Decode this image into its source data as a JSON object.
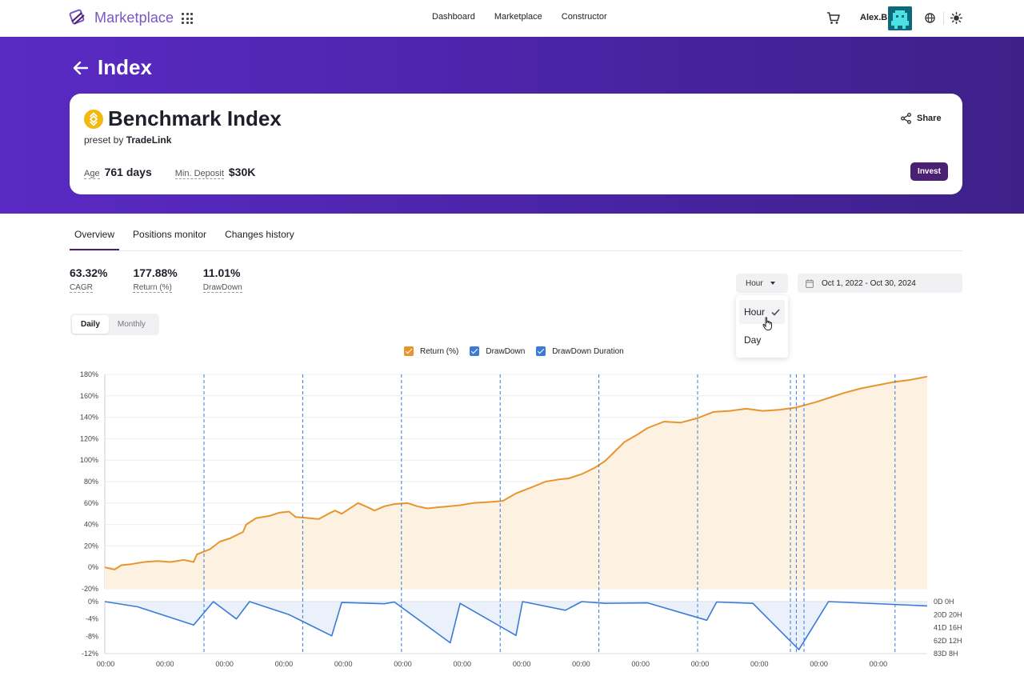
{
  "nav": {
    "logo_text": "Marketplace",
    "links": [
      "Dashboard",
      "Marketplace",
      "Constructor"
    ],
    "user_name": "Alex.B"
  },
  "hero": {
    "page_title": "Index",
    "card": {
      "title": "Benchmark Index",
      "preset_prefix": "preset by",
      "preset_author": "TradeLink",
      "share_label": "Share",
      "age_label": "Age",
      "age_value": "761 days",
      "min_deposit_label": "Min. Deposit",
      "min_deposit_value": "$30K",
      "invest_label": "Invest"
    }
  },
  "tabs": [
    "Overview",
    "Positions monitor",
    "Changes history"
  ],
  "stats": [
    {
      "value": "63.32%",
      "label": "CAGR"
    },
    {
      "value": "177.88%",
      "label": "Return (%)"
    },
    {
      "value": "11.01%",
      "label": "DrawDown"
    }
  ],
  "controls": {
    "period_selected": "Hour",
    "period_options": [
      "Hour",
      "Day"
    ],
    "date_range": "Oct 1, 2022 - Oct 30, 2024",
    "view_toggle": [
      "Daily",
      "Monthly"
    ],
    "view_selected": "Daily"
  },
  "colors": {
    "brand": "#4b1f72",
    "hero_bg": "#5a2ac4",
    "return_line": "#e8952e",
    "return_fill": "#fdf1e2",
    "drawdown_line": "#3a7bd5",
    "drawdown_fill": "#dde8f6",
    "period_marker": "#3a7bd5"
  },
  "chart_data": {
    "type": "line",
    "legend": [
      {
        "name": "Return (%)",
        "checked": true,
        "color": "#e8952e"
      },
      {
        "name": "DrawDown",
        "checked": true,
        "color": "#3a7bd5"
      },
      {
        "name": "DrawDown Duration",
        "checked": true,
        "color": "#3a7bd5"
      }
    ],
    "x_tick_labels": [
      "00:00",
      "00:00",
      "00:00",
      "00:00",
      "00:00",
      "00:00",
      "00:00",
      "00:00",
      "00:00",
      "00:00",
      "00:00",
      "00:00",
      "00:00",
      "00:00"
    ],
    "return_axis": {
      "ylim": [
        -20,
        180
      ],
      "ticks": [
        "180%",
        "160%",
        "140%",
        "120%",
        "100%",
        "80%",
        "60%",
        "40%",
        "20%",
        "0%",
        "-20%"
      ]
    },
    "drawdown_axis": {
      "ylim": [
        -12,
        0
      ],
      "ticks": [
        "0%",
        "-4%",
        "-8%",
        "-12%"
      ]
    },
    "duration_axis": {
      "ticks": [
        "0D 0H",
        "20D 20H",
        "41D 16H",
        "62D 12H",
        "83D 8H"
      ]
    },
    "return_series": {
      "name": "Return (%)",
      "values": [
        [
          0,
          0
        ],
        [
          3,
          -2
        ],
        [
          5,
          2
        ],
        [
          8,
          3
        ],
        [
          12,
          5
        ],
        [
          16,
          6
        ],
        [
          20,
          5
        ],
        [
          24,
          7
        ],
        [
          27,
          5
        ],
        [
          28,
          12
        ],
        [
          32,
          17
        ],
        [
          35,
          24
        ],
        [
          38,
          27
        ],
        [
          42,
          33
        ],
        [
          43,
          40
        ],
        [
          46,
          46
        ],
        [
          50,
          48
        ],
        [
          53,
          51
        ],
        [
          56,
          52
        ],
        [
          58,
          47
        ],
        [
          62,
          46
        ],
        [
          65,
          45
        ],
        [
          68,
          50
        ],
        [
          70,
          53
        ],
        [
          72,
          50
        ],
        [
          75,
          56
        ],
        [
          77,
          60
        ],
        [
          80,
          56
        ],
        [
          82,
          53
        ],
        [
          85,
          57
        ],
        [
          88,
          59
        ],
        [
          92,
          60
        ],
        [
          95,
          57
        ],
        [
          98,
          55
        ],
        [
          101,
          56
        ],
        [
          105,
          57
        ],
        [
          108,
          58
        ],
        [
          112,
          60
        ],
        [
          117,
          61
        ],
        [
          121,
          62
        ],
        [
          125,
          69
        ],
        [
          130,
          75
        ],
        [
          134,
          80
        ],
        [
          138,
          82
        ],
        [
          141,
          83
        ],
        [
          145,
          87
        ],
        [
          149,
          93
        ],
        [
          152,
          99
        ],
        [
          155,
          108
        ],
        [
          158,
          117
        ],
        [
          162,
          124
        ],
        [
          165,
          130
        ],
        [
          170,
          136
        ],
        [
          175,
          135
        ],
        [
          180,
          139
        ],
        [
          185,
          145
        ],
        [
          190,
          146
        ],
        [
          195,
          148
        ],
        [
          200,
          146
        ],
        [
          205,
          147
        ],
        [
          210,
          149
        ],
        [
          216,
          154
        ],
        [
          220,
          158
        ],
        [
          225,
          163
        ],
        [
          230,
          167
        ],
        [
          235,
          170
        ],
        [
          240,
          173
        ],
        [
          245,
          175
        ],
        [
          250,
          178
        ]
      ]
    },
    "drawdown_series": {
      "name": "DrawDown",
      "values": [
        [
          0,
          0
        ],
        [
          10,
          -1.2
        ],
        [
          27,
          -5.4
        ],
        [
          33,
          0
        ],
        [
          40,
          -4
        ],
        [
          44,
          0
        ],
        [
          56,
          -3
        ],
        [
          69,
          -7.9
        ],
        [
          72,
          -0.2
        ],
        [
          85,
          -0.5
        ],
        [
          88,
          -0.1
        ],
        [
          105,
          -9.5
        ],
        [
          108,
          -0.4
        ],
        [
          125,
          -7.8
        ],
        [
          127,
          0
        ],
        [
          140,
          -2
        ],
        [
          145,
          0
        ],
        [
          152,
          -0.4
        ],
        [
          165,
          -0.3
        ],
        [
          183,
          -4.3
        ],
        [
          186,
          -0.1
        ],
        [
          197,
          -0.4
        ],
        [
          211,
          -11.1
        ],
        [
          220,
          0
        ],
        [
          250,
          -1
        ]
      ]
    }
  }
}
